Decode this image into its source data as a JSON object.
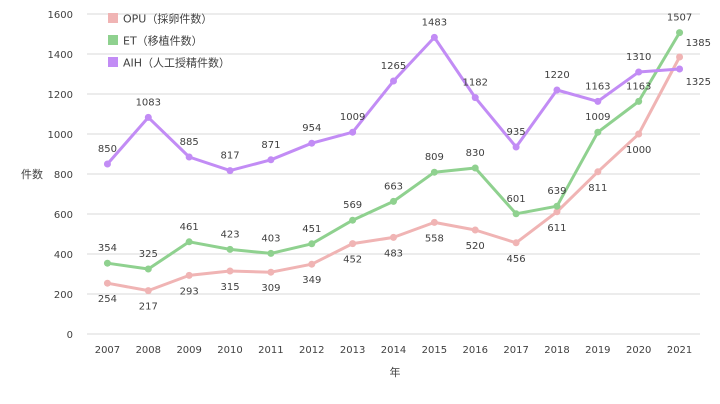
{
  "chart_data": {
    "type": "line",
    "title": "",
    "xlabel": "年",
    "ylabel": "件数",
    "x": [
      "2007",
      "2008",
      "2009",
      "2010",
      "2011",
      "2012",
      "2013",
      "2014",
      "2015",
      "2016",
      "2017",
      "2018",
      "2019",
      "2020",
      "2021"
    ],
    "ylim": [
      0,
      1600
    ],
    "yticks": [
      0,
      200,
      400,
      600,
      800,
      1000,
      1200,
      1400,
      1600
    ],
    "grid": "horizontal",
    "legend_position": "top-left",
    "series": [
      {
        "name": "OPU（採卵件数）",
        "color": "#f0b4b4",
        "values": [
          254,
          217,
          293,
          315,
          309,
          349,
          452,
          483,
          558,
          520,
          456,
          611,
          811,
          1000,
          1385
        ],
        "label_position": [
          "below",
          "below",
          "below",
          "below",
          "below",
          "below",
          "below",
          "below",
          "below",
          "below",
          "below",
          "below",
          "below",
          "below",
          "right"
        ]
      },
      {
        "name": "ET（移植件数）",
        "color": "#8fd18f",
        "values": [
          354,
          325,
          461,
          423,
          403,
          451,
          569,
          663,
          809,
          830,
          601,
          639,
          1009,
          1163,
          1507
        ],
        "label_position": [
          "above",
          "above",
          "above",
          "above",
          "above",
          "above",
          "above",
          "above",
          "above",
          "above",
          "above",
          "above",
          "above",
          "above",
          "above"
        ]
      },
      {
        "name": "AIH（人工授精件数）",
        "color": "#c28cf5",
        "values": [
          850,
          1083,
          885,
          817,
          871,
          954,
          1009,
          1265,
          1483,
          1182,
          935,
          1220,
          1163,
          1310,
          1325
        ],
        "label_position": [
          "above",
          "above",
          "above",
          "above",
          "above",
          "above",
          "above",
          "above",
          "above",
          "above",
          "above",
          "above",
          "above",
          "above",
          "below-right"
        ]
      }
    ]
  }
}
